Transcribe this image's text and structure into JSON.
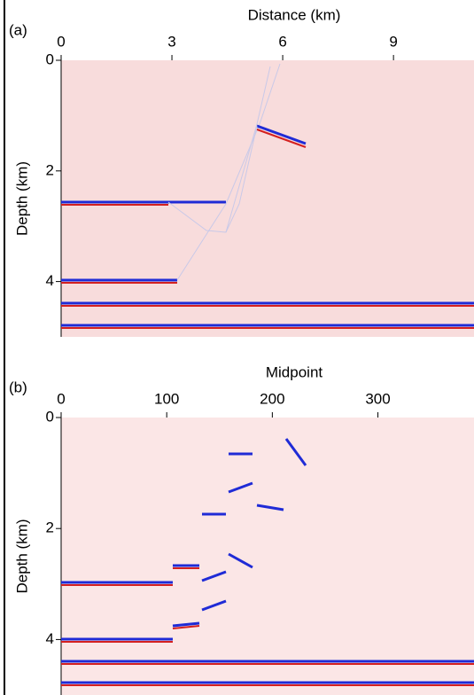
{
  "chart_data": [
    {
      "type": "image",
      "panel_label": "(a)",
      "xlabel": "Distance (km)",
      "ylabel": "Depth (km)",
      "xlim": [
        0,
        11.18
      ],
      "ylim": [
        0,
        5
      ],
      "xticks": [
        0,
        3,
        6,
        9
      ],
      "yticks": [
        0,
        2,
        4
      ],
      "color": "#f8dcdc"
    },
    {
      "type": "image",
      "panel_label": "(b)",
      "xlabel": "Midpoint",
      "ylabel": "Depth (km)",
      "xlim": [
        0,
        391
      ],
      "ylim": [
        0,
        5
      ],
      "xticks": [
        0,
        100,
        200,
        300
      ],
      "yticks": [
        0,
        2,
        4
      ],
      "color": "#fbe6e6"
    }
  ]
}
